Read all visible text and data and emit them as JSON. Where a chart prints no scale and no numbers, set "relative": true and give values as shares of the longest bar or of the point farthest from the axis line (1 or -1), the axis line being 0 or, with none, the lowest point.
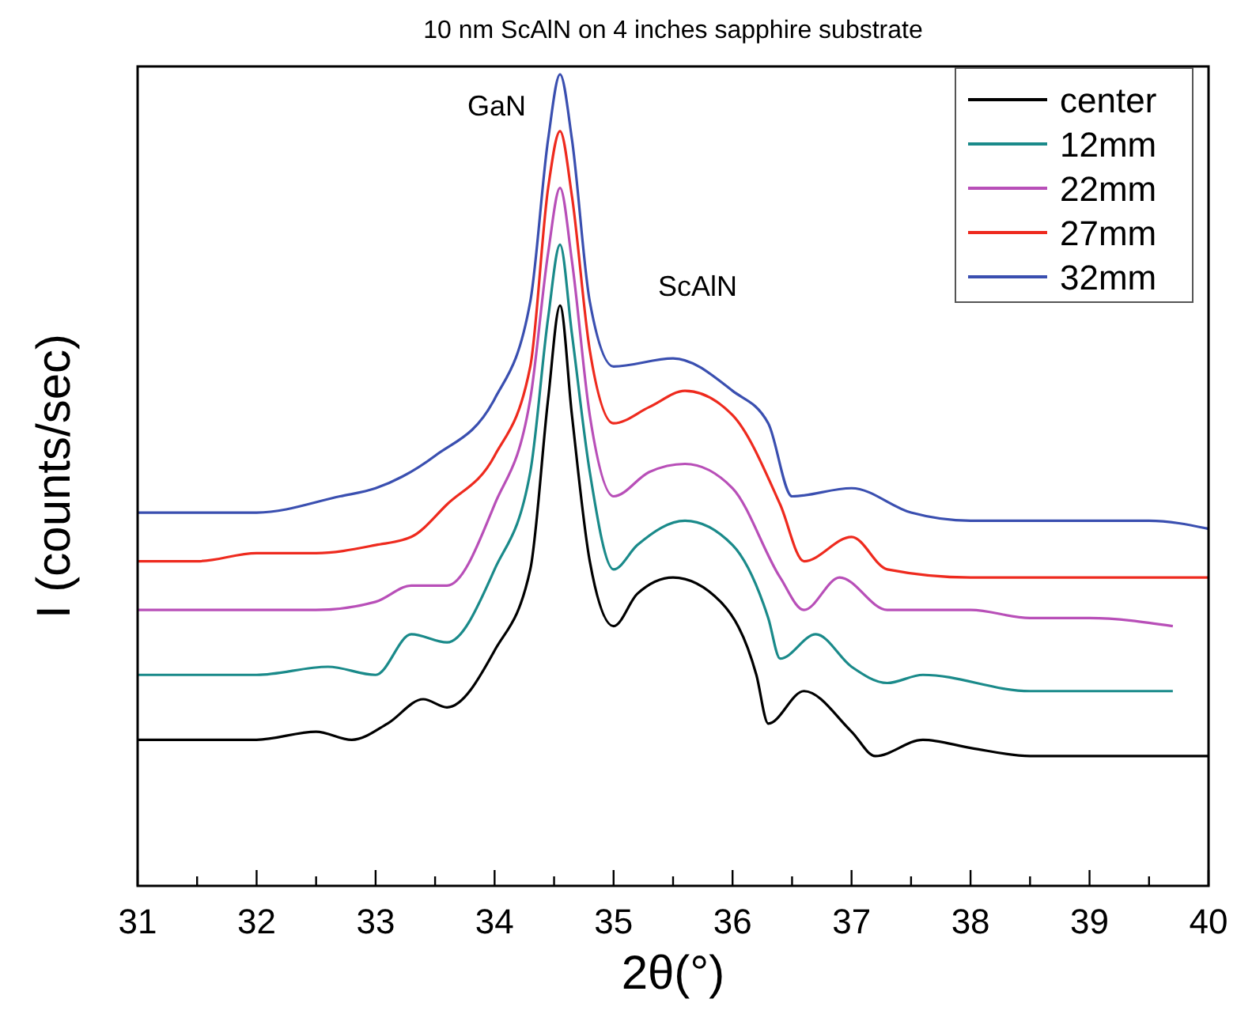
{
  "chart_data": {
    "type": "line",
    "title": "10 nm ScAlN on 4 inches sapphire substrate",
    "xlabel": "2θ(°)",
    "ylabel": "I (counts/sec)",
    "relative": true,
    "legend": "top right",
    "xlim": [
      31,
      40
    ],
    "xticks": [
      31,
      {
        "value": 31.5,
        "label": null
      },
      32,
      {
        "value": 32.5,
        "label": null
      },
      33,
      {
        "value": 33.5,
        "label": null
      },
      34,
      {
        "value": 34.5,
        "label": null
      },
      35,
      {
        "value": 35.5,
        "label": null
      },
      36,
      {
        "value": 36.5,
        "label": null
      },
      37,
      {
        "value": 37.5,
        "label": null
      },
      38,
      {
        "value": 38.5,
        "label": null
      },
      39,
      {
        "value": 39.5,
        "label": null
      },
      40
    ],
    "annotations": [
      "GaN",
      "ScAlN"
    ],
    "series": [
      {
        "name": "center",
        "color": "#000000",
        "x": [
          31,
          31.5,
          32,
          32.5,
          32.8,
          33.1,
          33.4,
          33.6,
          34.0,
          34.3,
          34.45,
          34.55,
          34.65,
          34.8,
          35.0,
          35.2,
          35.5,
          35.9,
          36.2,
          36.3,
          36.6,
          37.0,
          37.2,
          37.6,
          38.0,
          38.5,
          39.0,
          39.5,
          40
        ],
        "values": [
          0.18,
          0.18,
          0.18,
          0.19,
          0.18,
          0.2,
          0.23,
          0.22,
          0.29,
          0.39,
          0.6,
          0.715,
          0.58,
          0.4,
          0.32,
          0.36,
          0.38,
          0.35,
          0.26,
          0.2,
          0.24,
          0.19,
          0.16,
          0.18,
          0.17,
          0.16,
          0.16,
          0.16,
          0.16
        ]
      },
      {
        "name": "12mm",
        "color": "#1a8a8a",
        "x": [
          31,
          31.5,
          32,
          32.6,
          33.0,
          33.3,
          33.6,
          34.0,
          34.3,
          34.45,
          34.55,
          34.65,
          34.8,
          35.0,
          35.2,
          35.6,
          36.0,
          36.3,
          36.4,
          36.7,
          37.0,
          37.3,
          37.6,
          38.5,
          39.0,
          39.7
        ],
        "values": [
          0.26,
          0.26,
          0.26,
          0.27,
          0.26,
          0.31,
          0.3,
          0.39,
          0.51,
          0.7,
          0.79,
          0.68,
          0.51,
          0.39,
          0.42,
          0.45,
          0.42,
          0.33,
          0.28,
          0.31,
          0.27,
          0.25,
          0.26,
          0.24,
          0.24,
          0.24
        ]
      },
      {
        "name": "22mm",
        "color": "#b84fb8",
        "x": [
          31,
          31.5,
          32,
          32.5,
          33,
          33.3,
          33.6,
          34.0,
          34.3,
          34.45,
          34.55,
          34.65,
          34.8,
          35.0,
          35.3,
          35.6,
          36.0,
          36.4,
          36.6,
          36.9,
          37.3,
          38,
          38.5,
          39,
          39.7
        ],
        "values": [
          0.34,
          0.34,
          0.34,
          0.34,
          0.35,
          0.37,
          0.37,
          0.47,
          0.6,
          0.78,
          0.86,
          0.77,
          0.58,
          0.48,
          0.51,
          0.52,
          0.49,
          0.38,
          0.34,
          0.38,
          0.34,
          0.34,
          0.33,
          0.33,
          0.32
        ]
      },
      {
        "name": "27mm",
        "color": "#ee2a1e",
        "x": [
          31,
          31.5,
          32,
          32.5,
          33,
          33.3,
          33.6,
          34.0,
          34.3,
          34.45,
          34.55,
          34.65,
          34.8,
          35.0,
          35.3,
          35.6,
          36.0,
          36.4,
          36.6,
          37.0,
          37.3,
          38,
          38.5,
          39,
          39.5,
          40
        ],
        "values": [
          0.4,
          0.4,
          0.41,
          0.41,
          0.42,
          0.43,
          0.47,
          0.53,
          0.64,
          0.86,
          0.93,
          0.85,
          0.66,
          0.57,
          0.59,
          0.61,
          0.58,
          0.47,
          0.4,
          0.43,
          0.39,
          0.38,
          0.38,
          0.38,
          0.38,
          0.38
        ]
      },
      {
        "name": "32mm",
        "color": "#3a4fb0",
        "x": [
          31,
          31.5,
          32,
          32.7,
          33.0,
          33.5,
          34.0,
          34.3,
          34.45,
          34.55,
          34.65,
          34.8,
          35.0,
          35.5,
          36.0,
          36.3,
          36.5,
          37.0,
          37.5,
          38,
          38.5,
          39,
          39.5,
          40
        ],
        "values": [
          0.46,
          0.46,
          0.46,
          0.48,
          0.49,
          0.53,
          0.6,
          0.72,
          0.92,
          1.0,
          0.92,
          0.72,
          0.64,
          0.65,
          0.61,
          0.57,
          0.48,
          0.49,
          0.46,
          0.45,
          0.45,
          0.45,
          0.45,
          0.44
        ]
      }
    ]
  }
}
